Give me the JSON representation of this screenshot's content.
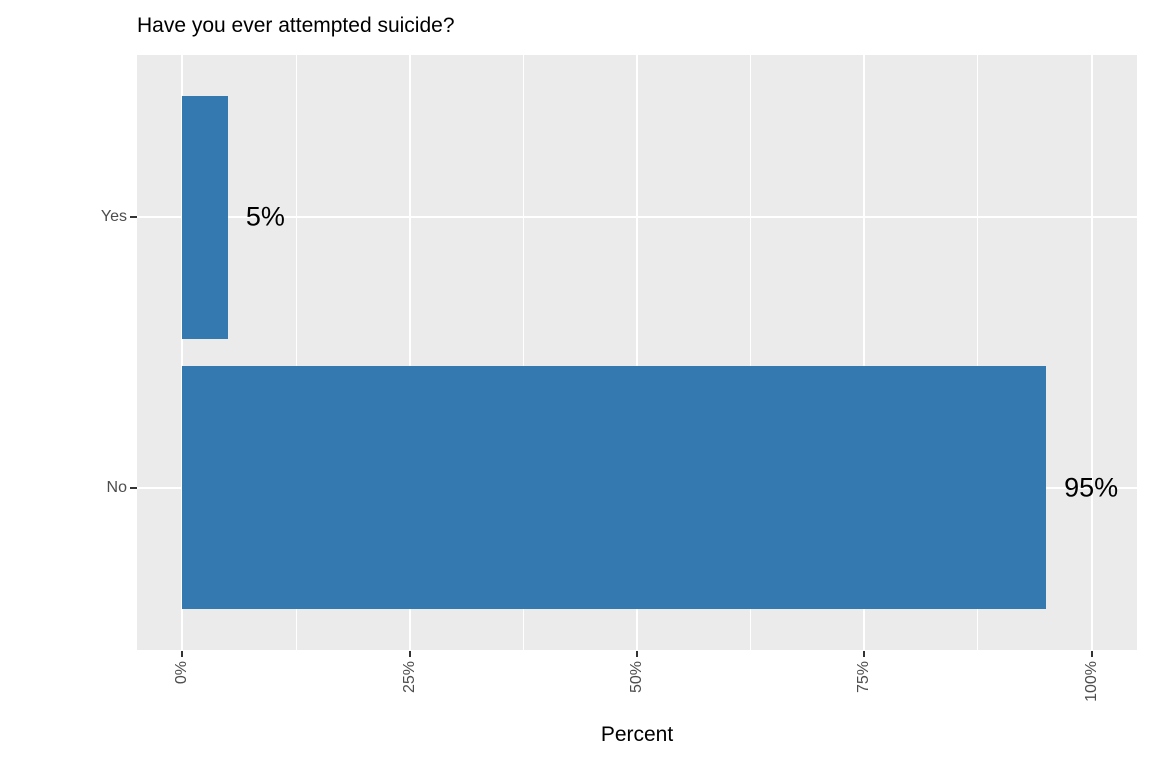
{
  "chart_data": {
    "type": "bar",
    "orientation": "horizontal",
    "title": "Have you ever attempted suicide?",
    "xlabel": "Percent",
    "ylabel": "",
    "categories": [
      "Yes",
      "No"
    ],
    "values": [
      5,
      95
    ],
    "bar_labels": [
      "5%",
      "95%"
    ],
    "x_ticks": [
      {
        "value": 0,
        "label": "0%"
      },
      {
        "value": 25,
        "label": "25%"
      },
      {
        "value": 50,
        "label": "50%"
      },
      {
        "value": 75,
        "label": "75%"
      },
      {
        "value": 100,
        "label": "100%"
      }
    ],
    "x_minor_ticks": [
      12.5,
      37.5,
      62.5,
      87.5
    ],
    "xlim": [
      -5,
      105
    ],
    "x_tick_label_rotation_deg": -90,
    "grid": true,
    "legend_position": "none",
    "colors": {
      "bar": "#3579b1",
      "panel_background": "#ebebeb",
      "gridline": "#ffffff",
      "tick_label": "#4d4d4d",
      "tick_mark": "#333333",
      "text": "#000000",
      "figure_background": "#ffffff"
    }
  }
}
